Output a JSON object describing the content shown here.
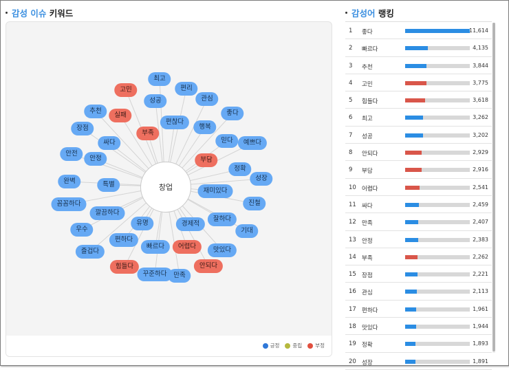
{
  "left_panel": {
    "title_prefix": "감성 이슈",
    "title_suffix": "키워드"
  },
  "right_panel": {
    "title_prefix": "감성어",
    "title_suffix": "랭킹"
  },
  "network": {
    "center": "창업",
    "nodes": [
      {
        "label": "최고",
        "s": "pos"
      },
      {
        "label": "고민",
        "s": "neg"
      },
      {
        "label": "편리",
        "s": "pos"
      },
      {
        "label": "성공",
        "s": "pos"
      },
      {
        "label": "관심",
        "s": "pos"
      },
      {
        "label": "추천",
        "s": "pos"
      },
      {
        "label": "실패",
        "s": "neg"
      },
      {
        "label": "편찮다",
        "s": "pos"
      },
      {
        "label": "좋다",
        "s": "pos"
      },
      {
        "label": "장점",
        "s": "pos"
      },
      {
        "label": "부족",
        "s": "neg"
      },
      {
        "label": "행복",
        "s": "pos"
      },
      {
        "label": "싸다",
        "s": "pos"
      },
      {
        "label": "믿다",
        "s": "pos"
      },
      {
        "label": "예쁘다",
        "s": "pos"
      },
      {
        "label": "안전",
        "s": "pos"
      },
      {
        "label": "안정",
        "s": "pos"
      },
      {
        "label": "부담",
        "s": "neg"
      },
      {
        "label": "정확",
        "s": "pos"
      },
      {
        "label": "성장",
        "s": "pos"
      },
      {
        "label": "완벽",
        "s": "pos"
      },
      {
        "label": "특별",
        "s": "pos"
      },
      {
        "label": "재미있다",
        "s": "pos"
      },
      {
        "label": "꼼꼼하다",
        "s": "pos"
      },
      {
        "label": "진철",
        "s": "pos"
      },
      {
        "label": "깔끔하다",
        "s": "pos"
      },
      {
        "label": "잘하다",
        "s": "pos"
      },
      {
        "label": "우수",
        "s": "pos"
      },
      {
        "label": "유명",
        "s": "pos"
      },
      {
        "label": "경제적",
        "s": "pos"
      },
      {
        "label": "기대",
        "s": "pos"
      },
      {
        "label": "편하다",
        "s": "pos"
      },
      {
        "label": "즐겁다",
        "s": "pos"
      },
      {
        "label": "빠르다",
        "s": "pos"
      },
      {
        "label": "어렵다",
        "s": "neg"
      },
      {
        "label": "맛있다",
        "s": "pos"
      },
      {
        "label": "힘들다",
        "s": "neg"
      },
      {
        "label": "안되다",
        "s": "neg"
      },
      {
        "label": "꾸준하다",
        "s": "pos"
      },
      {
        "label": "만족",
        "s": "pos"
      }
    ]
  },
  "legend": [
    {
      "label": "긍정",
      "color": "#2f78d8"
    },
    {
      "label": "중립",
      "color": "#b6b93e"
    },
    {
      "label": "부정",
      "color": "#e14f3f"
    }
  ],
  "colors": {
    "pos": "#66a9f4",
    "neg": "#ee6f5f",
    "bar_pos": "#2b8de3",
    "bar_neg": "#d9564a",
    "bar_track": "#d8d8d8"
  },
  "ranking": [
    {
      "no": "1",
      "kw": "좋다",
      "val": "11,614",
      "v": 11614,
      "s": "pos"
    },
    {
      "no": "2",
      "kw": "빠르다",
      "val": "4,135",
      "v": 4135,
      "s": "pos"
    },
    {
      "no": "3",
      "kw": "추천",
      "val": "3,844",
      "v": 3844,
      "s": "pos"
    },
    {
      "no": "4",
      "kw": "고민",
      "val": "3,775",
      "v": 3775,
      "s": "neg"
    },
    {
      "no": "5",
      "kw": "힘들다",
      "val": "3,618",
      "v": 3618,
      "s": "neg"
    },
    {
      "no": "6",
      "kw": "최고",
      "val": "3,262",
      "v": 3262,
      "s": "pos"
    },
    {
      "no": "7",
      "kw": "성공",
      "val": "3,202",
      "v": 3202,
      "s": "pos"
    },
    {
      "no": "8",
      "kw": "안되다",
      "val": "2,929",
      "v": 2929,
      "s": "neg"
    },
    {
      "no": "9",
      "kw": "부담",
      "val": "2,916",
      "v": 2916,
      "s": "neg"
    },
    {
      "no": "10",
      "kw": "어렵다",
      "val": "2,541",
      "v": 2541,
      "s": "neg"
    },
    {
      "no": "11",
      "kw": "싸다",
      "val": "2,459",
      "v": 2459,
      "s": "pos"
    },
    {
      "no": "12",
      "kw": "만족",
      "val": "2,407",
      "v": 2407,
      "s": "pos"
    },
    {
      "no": "13",
      "kw": "안정",
      "val": "2,383",
      "v": 2383,
      "s": "pos"
    },
    {
      "no": "14",
      "kw": "부족",
      "val": "2,262",
      "v": 2262,
      "s": "neg"
    },
    {
      "no": "15",
      "kw": "장점",
      "val": "2,221",
      "v": 2221,
      "s": "pos"
    },
    {
      "no": "16",
      "kw": "관심",
      "val": "2,113",
      "v": 2113,
      "s": "pos"
    },
    {
      "no": "17",
      "kw": "편하다",
      "val": "1,961",
      "v": 1961,
      "s": "pos"
    },
    {
      "no": "18",
      "kw": "맛있다",
      "val": "1,944",
      "v": 1944,
      "s": "pos"
    },
    {
      "no": "19",
      "kw": "정확",
      "val": "1,893",
      "v": 1893,
      "s": "pos"
    },
    {
      "no": "20",
      "kw": "성장",
      "val": "1,891",
      "v": 1891,
      "s": "pos"
    }
  ],
  "ranking_max": 11614
}
